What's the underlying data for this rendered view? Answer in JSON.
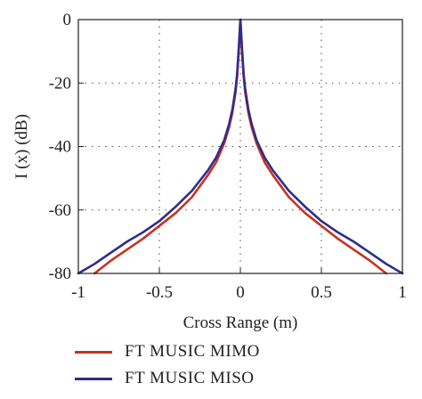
{
  "chart_data": {
    "type": "line",
    "title": "",
    "xlabel": "Cross Range (m)",
    "ylabel": "I (x) (dB)",
    "xlim": [
      -1,
      1
    ],
    "ylim": [
      -80,
      0
    ],
    "xticks": [
      "-1",
      "-0.5",
      "0",
      "0.5",
      "1"
    ],
    "yticks": [
      "0",
      "-20",
      "-40",
      "-60",
      "-80"
    ],
    "grid": true,
    "legend_position": "below",
    "series": [
      {
        "name": "FT MUSIC MIMO",
        "color": "#c8321e",
        "x": [
          -0.9,
          -0.8,
          -0.7,
          -0.6,
          -0.5,
          -0.4,
          -0.3,
          -0.2,
          -0.15,
          -0.1,
          -0.07,
          -0.05,
          -0.03,
          -0.02,
          -0.01,
          0,
          0.01,
          0.02,
          0.03,
          0.05,
          0.07,
          0.1,
          0.15,
          0.2,
          0.3,
          0.4,
          0.5,
          0.6,
          0.7,
          0.8,
          0.9
        ],
        "y": [
          -80,
          -76,
          -72.5,
          -69,
          -65,
          -61,
          -56,
          -49,
          -45,
          -39,
          -34,
          -29.5,
          -23,
          -18,
          -10,
          0,
          -10,
          -18,
          -23,
          -29.5,
          -34,
          -39,
          -45,
          -49,
          -56,
          -61,
          -65,
          -69,
          -72.5,
          -76,
          -80
        ]
      },
      {
        "name": "FT MUSIC MISO",
        "color": "#2e2c8c",
        "x": [
          -1,
          -0.9,
          -0.8,
          -0.7,
          -0.6,
          -0.5,
          -0.4,
          -0.3,
          -0.2,
          -0.15,
          -0.1,
          -0.07,
          -0.05,
          -0.03,
          -0.02,
          -0.01,
          0,
          0.01,
          0.02,
          0.03,
          0.05,
          0.07,
          0.1,
          0.15,
          0.2,
          0.3,
          0.4,
          0.5,
          0.6,
          0.7,
          0.8,
          0.9,
          1
        ],
        "y": [
          -80,
          -77,
          -73.5,
          -70,
          -67,
          -63.5,
          -59,
          -54,
          -47.5,
          -43.5,
          -38,
          -33,
          -28.5,
          -22,
          -17,
          -9,
          0,
          -9,
          -17,
          -22,
          -28.5,
          -33,
          -38,
          -43.5,
          -47.5,
          -54,
          -59,
          -63.5,
          -67,
          -70,
          -73.5,
          -77,
          -80
        ]
      }
    ]
  }
}
